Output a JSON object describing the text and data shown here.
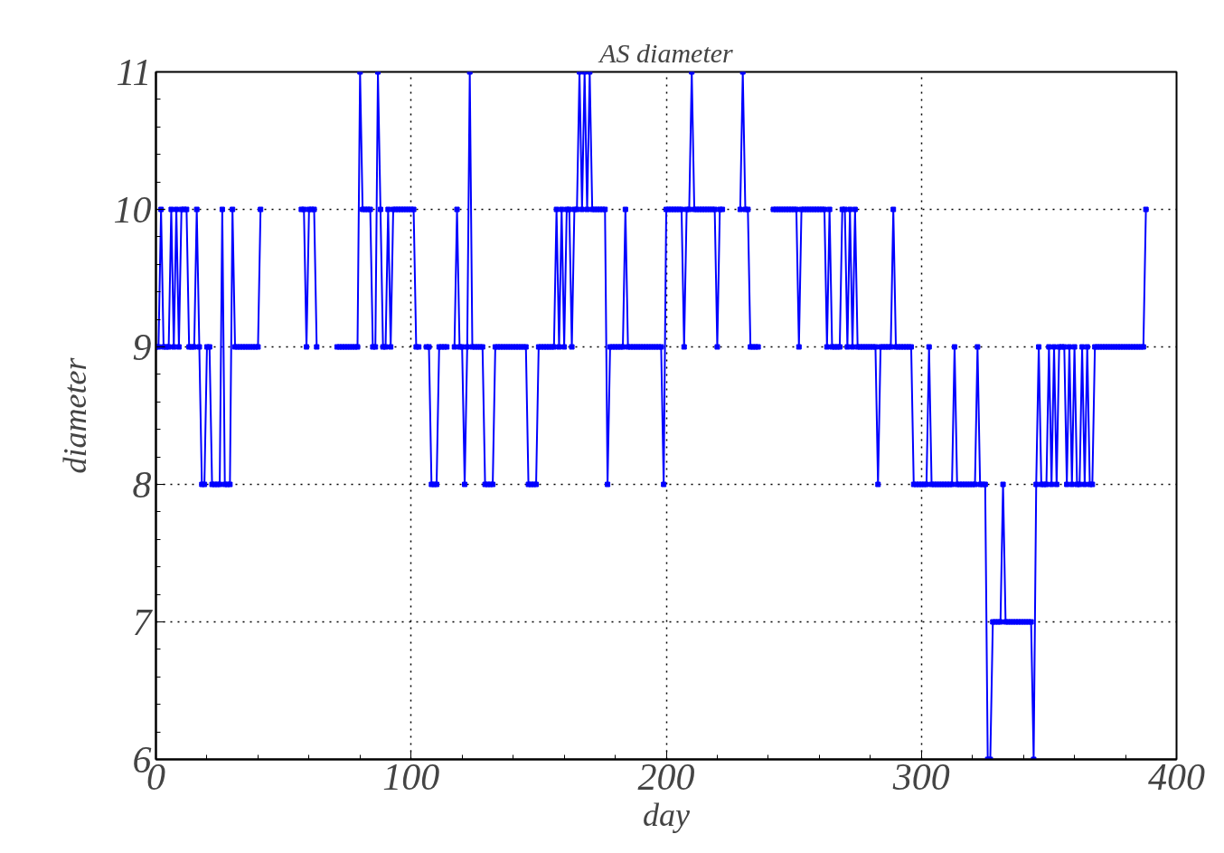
{
  "chart_data": {
    "type": "line",
    "title": "AS diameter",
    "xlabel": "day",
    "ylabel": "diameter",
    "xlim": [
      0,
      400
    ],
    "xticks": [
      0,
      100,
      200,
      300,
      400
    ],
    "ylim": [
      6,
      11
    ],
    "yticks": [
      6,
      7,
      8,
      9,
      10,
      11
    ],
    "grid": true,
    "marker": "square",
    "line_style": "solid",
    "series": [
      {
        "color": "#0000ff",
        "x": [
          0,
          1,
          2,
          3,
          4,
          5,
          6,
          7,
          8,
          9,
          10,
          11,
          12,
          13,
          14,
          15,
          16,
          17,
          18,
          19,
          20,
          21,
          22,
          23,
          24,
          25,
          26,
          27,
          28,
          29,
          30,
          31,
          32,
          33,
          34,
          35,
          36,
          37,
          38,
          39,
          40,
          41,
          42,
          43,
          44,
          45,
          46,
          47,
          48,
          49,
          50,
          51,
          52,
          53,
          54,
          55,
          56,
          57,
          58,
          59,
          60,
          61,
          62,
          63,
          64,
          65,
          66,
          67,
          68,
          69,
          70,
          71,
          72,
          73,
          74,
          75,
          76,
          77,
          78,
          79,
          80,
          81,
          82,
          83,
          84,
          85,
          86,
          87,
          88,
          89,
          90,
          91,
          92,
          93,
          94,
          95,
          96,
          97,
          98,
          99,
          100,
          101,
          102,
          103,
          104,
          105,
          106,
          107,
          108,
          109,
          110,
          111,
          112,
          113,
          114,
          115,
          116,
          117,
          118,
          119,
          120,
          121,
          122,
          123,
          124,
          125,
          126,
          127,
          128,
          129,
          130,
          131,
          132,
          133,
          134,
          135,
          136,
          137,
          138,
          139,
          140,
          141,
          142,
          143,
          144,
          145,
          146,
          147,
          148,
          149,
          150,
          151,
          152,
          153,
          154,
          155,
          156,
          157,
          158,
          159,
          160,
          161,
          162,
          163,
          164,
          165,
          166,
          167,
          168,
          169,
          170,
          171,
          172,
          173,
          174,
          175,
          176,
          177,
          178,
          179,
          180,
          181,
          182,
          183,
          184,
          185,
          186,
          187,
          188,
          189,
          190,
          191,
          192,
          193,
          194,
          195,
          196,
          197,
          198,
          199,
          200,
          201,
          202,
          203,
          204,
          205,
          206,
          207,
          208,
          209,
          210,
          211,
          212,
          213,
          214,
          215,
          216,
          217,
          218,
          219,
          220,
          221,
          222,
          223,
          224,
          225,
          226,
          227,
          228,
          229,
          230,
          231,
          232,
          233,
          234,
          235,
          236,
          237,
          238,
          239,
          240,
          241,
          242,
          243,
          244,
          245,
          246,
          247,
          248,
          249,
          250,
          251,
          252,
          253,
          254,
          255,
          256,
          257,
          258,
          259,
          260,
          261,
          262,
          263,
          264,
          265,
          266,
          267,
          268,
          269,
          270,
          271,
          272,
          273,
          274,
          275,
          276,
          277,
          278,
          279,
          280,
          281,
          282,
          283,
          284,
          285,
          286,
          287,
          288,
          289,
          290,
          291,
          292,
          293,
          294,
          295,
          296,
          297,
          298,
          299,
          300,
          301,
          302,
          303,
          304,
          305,
          306,
          307,
          308,
          309,
          310,
          311,
          312,
          313,
          314,
          315,
          316,
          317,
          318,
          319,
          320,
          321,
          322,
          323,
          324,
          325,
          326,
          327,
          328,
          329,
          330,
          331,
          332,
          333,
          334,
          335,
          336,
          337,
          338,
          339,
          340,
          341,
          342,
          343,
          344,
          345,
          346,
          347,
          348,
          349,
          350,
          351,
          352,
          353,
          354,
          355,
          356,
          357,
          358,
          359,
          360,
          361,
          362,
          363,
          364,
          365,
          366,
          367,
          368,
          369,
          370,
          371,
          372,
          373,
          374,
          375,
          376,
          377,
          378,
          379,
          380,
          381,
          382,
          383,
          384,
          385,
          386,
          387,
          388
        ],
        "values": [
          9,
          9,
          10,
          9,
          9,
          9,
          10,
          9,
          10,
          9,
          10,
          10,
          10,
          9,
          9,
          9,
          10,
          9,
          8,
          8,
          9,
          9,
          8,
          8,
          8,
          8,
          10,
          8,
          8,
          8,
          10,
          9,
          9,
          9,
          9,
          9,
          9,
          9,
          9,
          9,
          9,
          10,
          null,
          null,
          null,
          null,
          null,
          null,
          null,
          null,
          null,
          null,
          null,
          null,
          null,
          null,
          null,
          10,
          10,
          9,
          10,
          10,
          10,
          9,
          null,
          null,
          null,
          null,
          null,
          null,
          null,
          9,
          9,
          9,
          9,
          9,
          9,
          9,
          9,
          9,
          11,
          10,
          10,
          10,
          10,
          9,
          9,
          11,
          10,
          9,
          9,
          10,
          9,
          10,
          10,
          10,
          10,
          10,
          10,
          10,
          10,
          10,
          9,
          9,
          null,
          null,
          9,
          9,
          8,
          8,
          8,
          9,
          9,
          9,
          9,
          null,
          null,
          9,
          10,
          9,
          9,
          8,
          9,
          11,
          9,
          9,
          9,
          9,
          9,
          8,
          8,
          8,
          8,
          9,
          9,
          9,
          9,
          9,
          9,
          9,
          9,
          9,
          9,
          9,
          9,
          9,
          8,
          8,
          8,
          8,
          9,
          9,
          9,
          9,
          9,
          9,
          9,
          10,
          9,
          10,
          9,
          10,
          10,
          9,
          10,
          10,
          11,
          10,
          11,
          10,
          11,
          10,
          10,
          10,
          10,
          10,
          10,
          8,
          9,
          9,
          9,
          9,
          9,
          9,
          10,
          9,
          9,
          9,
          9,
          9,
          9,
          9,
          9,
          9,
          9,
          9,
          9,
          9,
          9,
          8,
          10,
          10,
          10,
          10,
          10,
          10,
          10,
          9,
          10,
          10,
          11,
          10,
          10,
          10,
          10,
          10,
          10,
          10,
          10,
          10,
          9,
          10,
          10,
          null,
          null,
          null,
          null,
          null,
          null,
          10,
          11,
          10,
          10,
          9,
          9,
          9,
          9,
          null,
          null,
          null,
          null,
          null,
          10,
          10,
          10,
          10,
          10,
          10,
          10,
          10,
          10,
          10,
          9,
          10,
          10,
          10,
          10,
          10,
          10,
          10,
          10,
          10,
          10,
          9,
          10,
          9,
          9,
          9,
          9,
          10,
          10,
          9,
          10,
          9,
          10,
          9,
          9,
          9,
          9,
          9,
          9,
          9,
          9,
          8,
          9,
          9,
          9,
          9,
          9,
          10,
          9,
          9,
          9,
          9,
          9,
          9,
          9,
          8,
          8,
          8,
          8,
          8,
          8,
          9,
          8,
          8,
          8,
          8,
          8,
          8,
          8,
          8,
          8,
          9,
          8,
          8,
          8,
          8,
          8,
          8,
          8,
          8,
          9,
          8,
          8,
          8,
          6,
          6,
          7,
          7,
          7,
          7,
          8,
          7,
          7,
          7,
          7,
          7,
          7,
          7,
          7,
          7,
          7,
          7,
          6,
          8,
          9,
          8,
          8,
          8,
          9,
          8,
          9,
          8,
          9,
          9,
          9,
          8,
          9,
          8,
          9,
          8,
          8,
          9,
          8,
          9,
          8,
          8,
          9,
          9,
          9,
          9,
          9,
          9,
          9,
          9,
          9,
          9,
          9,
          9,
          9,
          9,
          9,
          9,
          9,
          9,
          9,
          9,
          10
        ]
      }
    ]
  }
}
